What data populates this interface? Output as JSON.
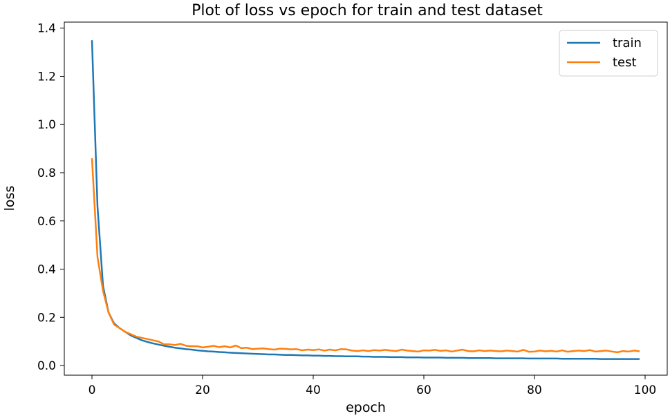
{
  "chart_data": {
    "type": "line",
    "title": "Plot of loss vs epoch for train and test dataset",
    "xlabel": "epoch",
    "ylabel": "loss",
    "xlim": [
      -5,
      104
    ],
    "ylim": [
      -0.04,
      1.425
    ],
    "xticks": [
      0,
      20,
      40,
      60,
      80,
      100
    ],
    "xtick_labels": [
      "0",
      "20",
      "40",
      "60",
      "80",
      "100"
    ],
    "yticks": [
      0.0,
      0.2,
      0.4,
      0.6,
      0.8,
      1.0,
      1.2,
      1.4
    ],
    "ytick_labels": [
      "0.0",
      "0.2",
      "0.4",
      "0.6",
      "0.8",
      "1.0",
      "1.2",
      "1.4"
    ],
    "grid": false,
    "legend": {
      "location": "top-right",
      "entries": [
        "train",
        "test"
      ]
    },
    "x": [
      0,
      1,
      2,
      3,
      4,
      5,
      6,
      7,
      8,
      9,
      10,
      11,
      12,
      13,
      14,
      15,
      16,
      17,
      18,
      19,
      20,
      21,
      22,
      23,
      24,
      25,
      26,
      27,
      28,
      29,
      30,
      31,
      32,
      33,
      34,
      35,
      36,
      37,
      38,
      39,
      40,
      41,
      42,
      43,
      44,
      45,
      46,
      47,
      48,
      49,
      50,
      51,
      52,
      53,
      54,
      55,
      56,
      57,
      58,
      59,
      60,
      61,
      62,
      63,
      64,
      65,
      66,
      67,
      68,
      69,
      70,
      71,
      72,
      73,
      74,
      75,
      76,
      77,
      78,
      79,
      80,
      81,
      82,
      83,
      84,
      85,
      86,
      87,
      88,
      89,
      90,
      91,
      92,
      93,
      94,
      95,
      96,
      97,
      98,
      99
    ],
    "series": [
      {
        "name": "train",
        "color": "#1f77b4",
        "values": [
          1.35,
          0.66,
          0.33,
          0.22,
          0.175,
          0.155,
          0.14,
          0.125,
          0.115,
          0.105,
          0.098,
          0.092,
          0.087,
          0.082,
          0.078,
          0.074,
          0.071,
          0.068,
          0.066,
          0.063,
          0.061,
          0.059,
          0.058,
          0.056,
          0.055,
          0.053,
          0.052,
          0.051,
          0.05,
          0.049,
          0.048,
          0.047,
          0.046,
          0.046,
          0.045,
          0.044,
          0.044,
          0.043,
          0.042,
          0.042,
          0.041,
          0.041,
          0.04,
          0.04,
          0.039,
          0.039,
          0.038,
          0.038,
          0.038,
          0.037,
          0.037,
          0.036,
          0.036,
          0.036,
          0.035,
          0.035,
          0.035,
          0.034,
          0.034,
          0.034,
          0.033,
          0.033,
          0.033,
          0.033,
          0.032,
          0.032,
          0.032,
          0.032,
          0.031,
          0.031,
          0.031,
          0.031,
          0.031,
          0.03,
          0.03,
          0.03,
          0.03,
          0.03,
          0.03,
          0.029,
          0.029,
          0.029,
          0.029,
          0.029,
          0.029,
          0.028,
          0.028,
          0.028,
          0.028,
          0.028,
          0.028,
          0.028,
          0.027,
          0.027,
          0.027,
          0.027,
          0.027,
          0.027,
          0.027,
          0.027
        ]
      },
      {
        "name": "test",
        "color": "#ff7f0e",
        "values": [
          0.86,
          0.45,
          0.31,
          0.22,
          0.17,
          0.155,
          0.14,
          0.13,
          0.12,
          0.115,
          0.11,
          0.105,
          0.1,
          0.088,
          0.088,
          0.085,
          0.09,
          0.082,
          0.08,
          0.08,
          0.075,
          0.078,
          0.082,
          0.076,
          0.08,
          0.075,
          0.083,
          0.072,
          0.074,
          0.068,
          0.07,
          0.071,
          0.068,
          0.066,
          0.07,
          0.069,
          0.067,
          0.068,
          0.063,
          0.066,
          0.064,
          0.067,
          0.062,
          0.066,
          0.063,
          0.068,
          0.067,
          0.062,
          0.06,
          0.063,
          0.06,
          0.064,
          0.062,
          0.065,
          0.062,
          0.06,
          0.066,
          0.062,
          0.06,
          0.058,
          0.063,
          0.062,
          0.065,
          0.061,
          0.063,
          0.058,
          0.062,
          0.066,
          0.06,
          0.059,
          0.063,
          0.06,
          0.062,
          0.06,
          0.059,
          0.062,
          0.06,
          0.058,
          0.065,
          0.057,
          0.058,
          0.062,
          0.059,
          0.061,
          0.058,
          0.063,
          0.057,
          0.06,
          0.062,
          0.06,
          0.064,
          0.058,
          0.06,
          0.062,
          0.058,
          0.055,
          0.06,
          0.058,
          0.062,
          0.059
        ]
      }
    ]
  }
}
